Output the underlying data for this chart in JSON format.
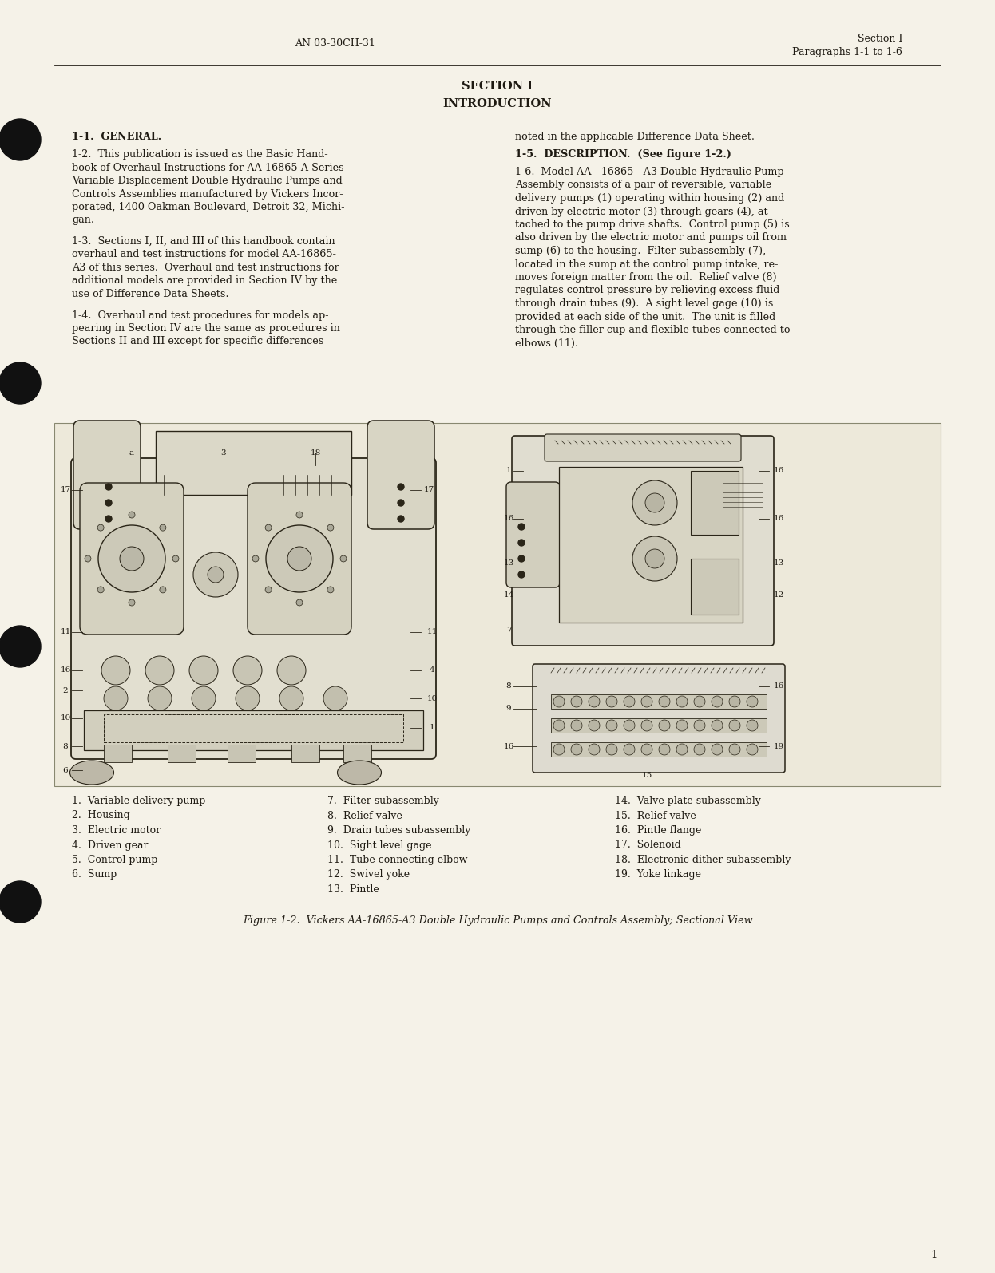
{
  "bg_color": "#f5f2e8",
  "page_bg": "#f5f2e8",
  "page_number": "1",
  "header_left": "AN 03-30CH-31",
  "header_right_line1": "Section I",
  "header_right_line2": "Paragraphs 1-1 to 1-6",
  "title_line1": "SECTION I",
  "title_line2": "INTRODUCTION",
  "section_heading": "1-1.  GENERAL.",
  "para_1_2_lines": [
    "1-2.  This publication is issued as the Basic Hand-",
    "book of Overhaul Instructions for AA-16865-A Series",
    "Variable Displacement Double Hydraulic Pumps and",
    "Controls Assemblies manufactured by Vickers Incor-",
    "porated, 1400 Oakman Boulevard, Detroit 32, Michi-",
    "gan."
  ],
  "para_1_3_lines": [
    "1-3.  Sections I, II, and III of this handbook contain",
    "overhaul and test instructions for model AA-16865-",
    "A3 of this series.  Overhaul and test instructions for",
    "additional models are provided in Section IV by the",
    "use of Difference Data Sheets."
  ],
  "para_1_4_lines": [
    "1-4.  Overhaul and test procedures for models ap-",
    "pearing in Section IV are the same as procedures in",
    "Sections II and III except for specific differences"
  ],
  "right_noted": "noted in the applicable Difference Data Sheet.",
  "right_1_5_head": "1-5.  DESCRIPTION.  (See figure 1-2.)",
  "right_1_6_lines": [
    "1-6.  Model AA - 16865 - A3 Double Hydraulic Pump",
    "Assembly consists of a pair of reversible, variable",
    "delivery pumps (1) operating within housing (2) and",
    "driven by electric motor (3) through gears (4), at-",
    "tached to the pump drive shafts.  Control pump (5) is",
    "also driven by the electric motor and pumps oil from",
    "sump (6) to the housing.  Filter subassembly (7),",
    "located in the sump at the control pump intake, re-",
    "moves foreign matter from the oil.  Relief valve (8)",
    "regulates control pressure by relieving excess fluid",
    "through drain tubes (9).  A sight level gage (10) is",
    "provided at each side of the unit.  The unit is filled",
    "through the filler cup and flexible tubes connected to",
    "elbows (11)."
  ],
  "legend_col1": [
    "1.  Variable delivery pump",
    "2.  Housing",
    "3.  Electric motor",
    "4.  Driven gear",
    "5.  Control pump",
    "6.  Sump"
  ],
  "legend_col2": [
    "7.  Filter subassembly",
    "8.  Relief valve",
    "9.  Drain tubes subassembly",
    "10.  Sight level gage",
    "11.  Tube connecting elbow",
    "12.  Swivel yoke",
    "13.  Pintle"
  ],
  "legend_col3": [
    "14.  Valve plate subassembly",
    "15.  Relief valve",
    "16.  Pintle flange",
    "17.  Solenoid",
    "18.  Electronic dither subassembly",
    "19.  Yoke linkage"
  ],
  "figure_caption": "Figure 1-2.  Vickers AA-16865-A3 Double Hydraulic Pumps and Controls Assembly; Sectional View",
  "text_color": "#1e1a12",
  "line_color": "#444438",
  "diagram_bg": "#f0ede0",
  "diagram_border": "#888870",
  "draw_color": "#2a2518",
  "hole_color": "#111111"
}
